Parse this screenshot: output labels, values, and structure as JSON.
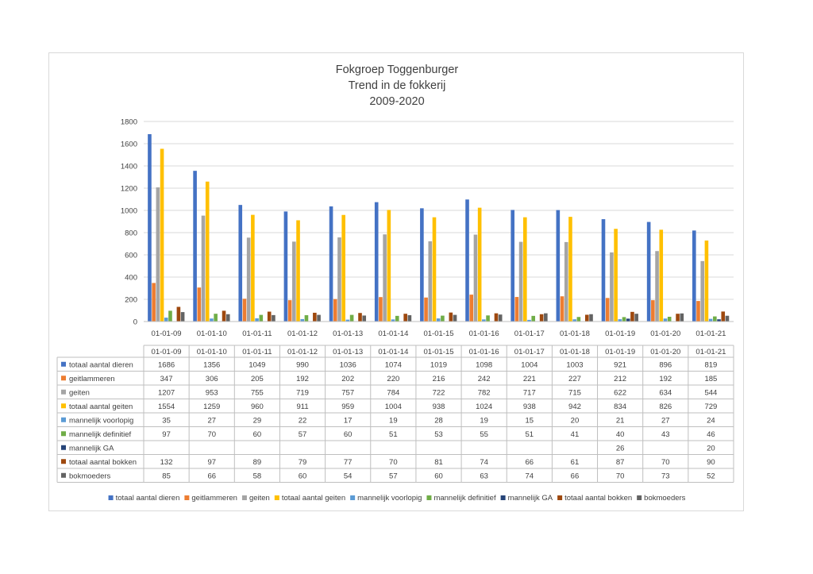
{
  "chart_data": {
    "type": "bar",
    "title": [
      "Fokgroep Toggenburger",
      "Trend in de fokkerij",
      "2009-2020"
    ],
    "xlabel": "",
    "ylabel": "",
    "ylim": [
      0,
      1800
    ],
    "yticks": [
      "0",
      "200",
      "400",
      "600",
      "800",
      "1000",
      "1200",
      "1400",
      "1600",
      "1800"
    ],
    "grid": true,
    "legend_position": "bottom",
    "categories": [
      "01-01-09",
      "01-01-10",
      "01-01-11",
      "01-01-12",
      "01-01-13",
      "01-01-14",
      "01-01-15",
      "01-01-16",
      "01-01-17",
      "01-01-18",
      "01-01-19",
      "01-01-20",
      "01-01-21"
    ],
    "series": [
      {
        "name": "totaal aantal dieren",
        "color": "#4472c4",
        "values": [
          1686,
          1356,
          1049,
          990,
          1036,
          1074,
          1019,
          1098,
          1004,
          1003,
          921,
          896,
          819
        ]
      },
      {
        "name": "geitlammeren",
        "color": "#ed7d31",
        "values": [
          347,
          306,
          205,
          192,
          202,
          220,
          216,
          242,
          221,
          227,
          212,
          192,
          185
        ]
      },
      {
        "name": "geiten",
        "color": "#a5a5a5",
        "values": [
          1207,
          953,
          755,
          719,
          757,
          784,
          722,
          782,
          717,
          715,
          622,
          634,
          544
        ]
      },
      {
        "name": "totaal aantal geiten",
        "color": "#ffc000",
        "values": [
          1554,
          1259,
          960,
          911,
          959,
          1004,
          938,
          1024,
          938,
          942,
          834,
          826,
          729
        ]
      },
      {
        "name": "mannelijk voorlopig",
        "color": "#5b9bd5",
        "values": [
          35,
          27,
          29,
          22,
          17,
          19,
          28,
          19,
          15,
          20,
          21,
          27,
          24
        ]
      },
      {
        "name": "mannelijk definitief",
        "color": "#70ad47",
        "values": [
          97,
          70,
          60,
          57,
          60,
          51,
          53,
          55,
          51,
          41,
          40,
          43,
          46
        ]
      },
      {
        "name": "mannelijk GA",
        "color": "#264478",
        "values": [
          null,
          null,
          null,
          null,
          null,
          null,
          null,
          null,
          null,
          null,
          26,
          null,
          20
        ]
      },
      {
        "name": "totaal aantal bokken",
        "color": "#9e480e",
        "values": [
          132,
          97,
          89,
          79,
          77,
          70,
          81,
          74,
          66,
          61,
          87,
          70,
          90
        ]
      },
      {
        "name": "bokmoeders",
        "color": "#636363",
        "values": [
          85,
          66,
          58,
          60,
          54,
          57,
          60,
          63,
          74,
          66,
          70,
          73,
          52
        ]
      }
    ]
  }
}
